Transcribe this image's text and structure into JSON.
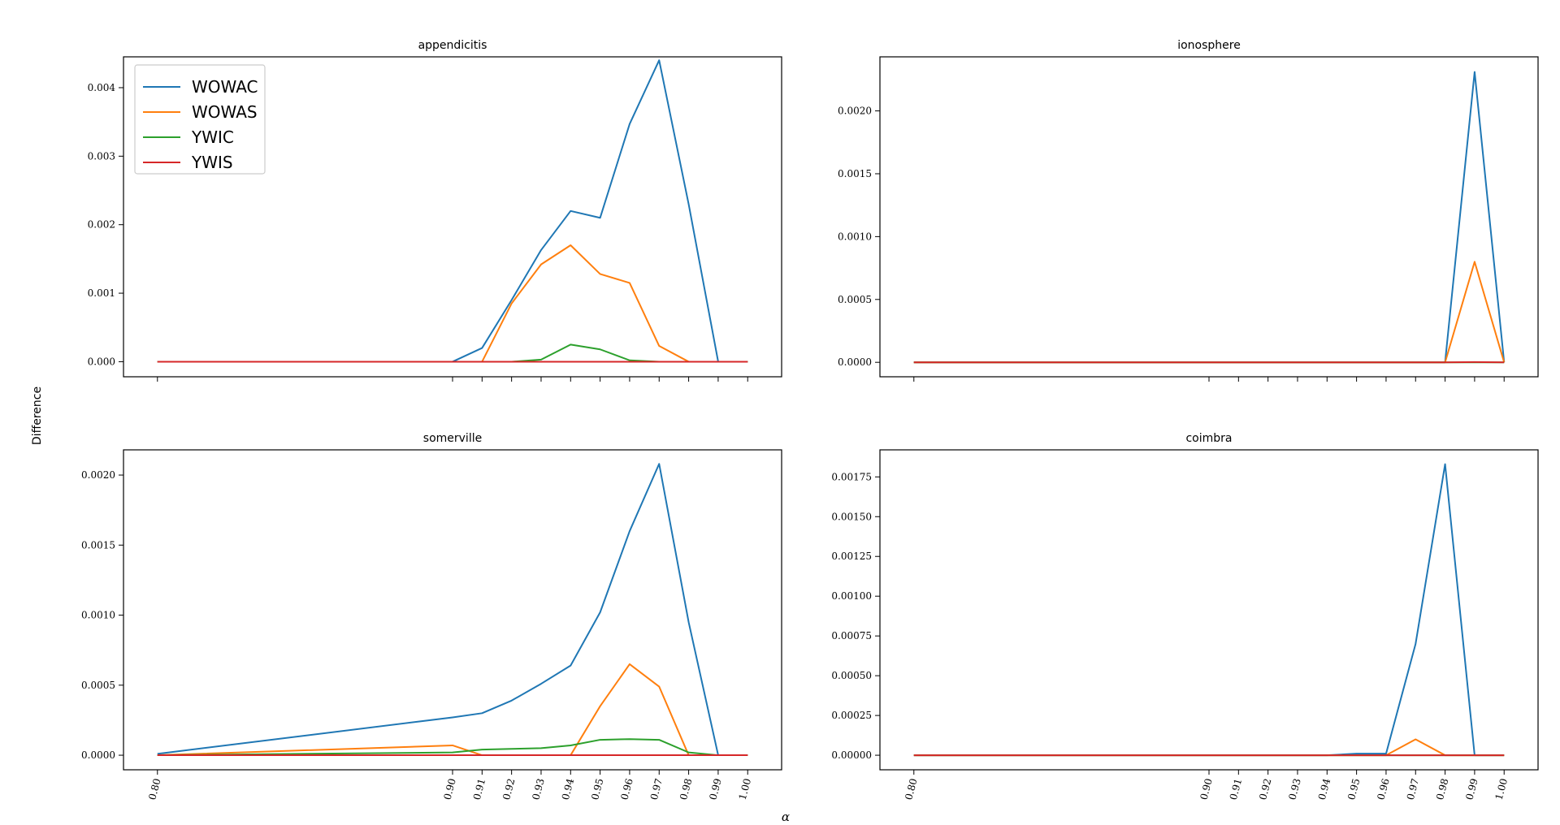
{
  "figure": {
    "ylabel": "Difference",
    "xlabel": "α"
  },
  "chart_data": [
    {
      "type": "line",
      "title": "appendicitis",
      "x": [
        0.8,
        0.9,
        0.91,
        0.92,
        0.93,
        0.94,
        0.95,
        0.96,
        0.97,
        0.98,
        0.99,
        1.0
      ],
      "ylim": [
        -0.00022,
        0.00445
      ],
      "yticks": [
        0.0,
        0.001,
        0.002,
        0.003,
        0.004
      ],
      "ytick_labels": [
        "0.000",
        "0.001",
        "0.002",
        "0.003",
        "0.004"
      ],
      "show_x_tick_labels": false,
      "legend": "top-left",
      "series": [
        {
          "name": "WOWAC",
          "color": "#1f77b4",
          "values": [
            0,
            0,
            0.0002,
            0.0009,
            0.00163,
            0.0022,
            0.0021,
            0.00347,
            0.0044,
            0.0023,
            0,
            0
          ]
        },
        {
          "name": "WOWAS",
          "color": "#ff7f0e",
          "values": [
            0,
            0,
            0,
            0.00085,
            0.00142,
            0.0017,
            0.00128,
            0.00115,
            0.00023,
            0,
            0,
            0
          ]
        },
        {
          "name": "YWIC",
          "color": "#2ca02c",
          "values": [
            0,
            0,
            0,
            0,
            3e-05,
            0.00025,
            0.00018,
            2e-05,
            0,
            0,
            0,
            0
          ]
        },
        {
          "name": "YWIS",
          "color": "#d62728",
          "values": [
            0,
            0,
            0,
            0,
            0,
            0,
            0,
            0,
            0,
            0,
            0,
            0
          ]
        }
      ]
    },
    {
      "type": "line",
      "title": "ionosphere",
      "x": [
        0.8,
        0.9,
        0.91,
        0.92,
        0.93,
        0.94,
        0.95,
        0.96,
        0.97,
        0.98,
        0.99,
        1.0
      ],
      "ylim": [
        -0.000115,
        0.00243
      ],
      "yticks": [
        0.0,
        0.0005,
        0.001,
        0.0015,
        0.002
      ],
      "ytick_labels": [
        "0.0000",
        "0.0005",
        "0.0010",
        "0.0015",
        "0.0020"
      ],
      "show_x_tick_labels": false,
      "series": [
        {
          "name": "WOWAC",
          "color": "#1f77b4",
          "values": [
            0,
            0,
            0,
            0,
            0,
            0,
            0,
            0,
            0,
            0,
            0.00231,
            0
          ]
        },
        {
          "name": "WOWAS",
          "color": "#ff7f0e",
          "values": [
            0,
            0,
            0,
            0,
            0,
            0,
            0,
            0,
            0,
            0,
            0.0008,
            0
          ]
        },
        {
          "name": "YWIC",
          "color": "#2ca02c",
          "values": [
            0,
            0,
            0,
            0,
            0,
            0,
            0,
            0,
            0,
            0,
            0,
            0
          ]
        },
        {
          "name": "YWIS",
          "color": "#d62728",
          "values": [
            0,
            0,
            0,
            0,
            0,
            0,
            0,
            0,
            0,
            0,
            2e-06,
            0
          ]
        }
      ]
    },
    {
      "type": "line",
      "title": "somerville",
      "x": [
        0.8,
        0.9,
        0.91,
        0.92,
        0.93,
        0.94,
        0.95,
        0.96,
        0.97,
        0.98,
        0.99,
        1.0
      ],
      "ylim": [
        -0.000104,
        0.00218
      ],
      "yticks": [
        0.0,
        0.0005,
        0.001,
        0.0015,
        0.002
      ],
      "ytick_labels": [
        "0.0000",
        "0.0005",
        "0.0010",
        "0.0015",
        "0.0020"
      ],
      "show_x_tick_labels": true,
      "xtick_labels": [
        "0.80",
        "0.90",
        "0.91",
        "0.92",
        "0.93",
        "0.94",
        "0.95",
        "0.96",
        "0.97",
        "0.98",
        "0.99",
        "1.00"
      ],
      "series": [
        {
          "name": "WOWAC",
          "color": "#1f77b4",
          "values": [
            1e-05,
            0.00027,
            0.0003,
            0.00039,
            0.00051,
            0.00064,
            0.00102,
            0.0016,
            0.00208,
            0.00095,
            0,
            0
          ]
        },
        {
          "name": "WOWAS",
          "color": "#ff7f0e",
          "values": [
            0,
            7e-05,
            0,
            0,
            0,
            0,
            0.00035,
            0.00065,
            0.00049,
            0,
            0,
            0
          ]
        },
        {
          "name": "YWIC",
          "color": "#2ca02c",
          "values": [
            0,
            2e-05,
            4e-05,
            4.5e-05,
            5e-05,
            7e-05,
            0.00011,
            0.000115,
            0.00011,
            2e-05,
            0,
            0
          ]
        },
        {
          "name": "YWIS",
          "color": "#d62728",
          "values": [
            0,
            0,
            0,
            0,
            0,
            0,
            0,
            0,
            0,
            0,
            0,
            0
          ]
        }
      ]
    },
    {
      "type": "line",
      "title": "coimbra",
      "x": [
        0.8,
        0.9,
        0.91,
        0.92,
        0.93,
        0.94,
        0.95,
        0.96,
        0.97,
        0.98,
        0.99,
        1.0
      ],
      "ylim": [
        -9.15e-05,
        0.00192
      ],
      "yticks": [
        0.0,
        0.00025,
        0.0005,
        0.00075,
        0.001,
        0.00125,
        0.0015,
        0.00175
      ],
      "ytick_labels": [
        "0.00000",
        "0.00025",
        "0.00050",
        "0.00075",
        "0.00100",
        "0.00125",
        "0.00150",
        "0.00175"
      ],
      "show_x_tick_labels": true,
      "xtick_labels": [
        "0.80",
        "0.90",
        "0.91",
        "0.92",
        "0.93",
        "0.94",
        "0.95",
        "0.96",
        "0.97",
        "0.98",
        "0.99",
        "1.00"
      ],
      "series": [
        {
          "name": "WOWAC",
          "color": "#1f77b4",
          "values": [
            0,
            0,
            0,
            0,
            0,
            0,
            1e-05,
            1e-05,
            0.0007,
            0.00183,
            0,
            0
          ]
        },
        {
          "name": "WOWAS",
          "color": "#ff7f0e",
          "values": [
            0,
            0,
            0,
            0,
            0,
            0,
            0,
            0,
            0.0001,
            0,
            0,
            0
          ]
        },
        {
          "name": "YWIC",
          "color": "#2ca02c",
          "values": [
            0,
            0,
            0,
            0,
            0,
            0,
            0,
            0,
            0,
            0,
            0,
            0
          ]
        },
        {
          "name": "YWIS",
          "color": "#d62728",
          "values": [
            0,
            0,
            0,
            0,
            0,
            0,
            0,
            0,
            0,
            0,
            0,
            0
          ]
        }
      ]
    }
  ]
}
